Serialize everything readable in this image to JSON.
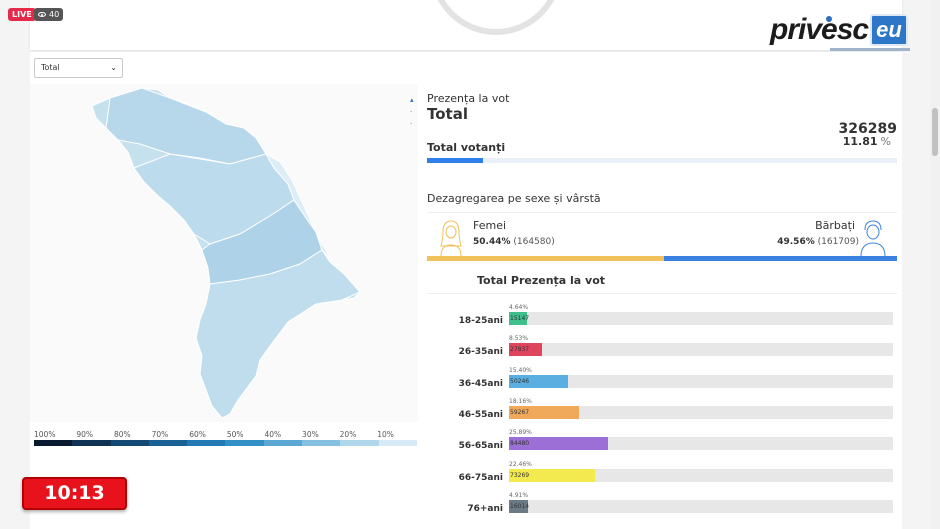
{
  "stream": {
    "live_label": "LIVE",
    "viewer_count": "40"
  },
  "logo": {
    "text": "privesc",
    "suffix": "eu"
  },
  "filter": {
    "selected": "Total"
  },
  "legend": {
    "labels": [
      "100%",
      "90%",
      "80%",
      "70%",
      "60%",
      "50%",
      "40%",
      "30%",
      "20%",
      "10%"
    ],
    "colors": [
      "#0a1a2e",
      "#0f3352",
      "#134a74",
      "#1a6296",
      "#2279b3",
      "#3390c6",
      "#5aa7d4",
      "#86c0e0",
      "#b1d7ec",
      "#d7ebf6"
    ]
  },
  "summary": {
    "heading": "Prezența la vot",
    "scope": "Total",
    "total_votes": "326289",
    "percent": "11.81",
    "percent_symbol": "%",
    "total_label": "Total votanți",
    "progress": 0.1181
  },
  "gender": {
    "title": "Dezagregarea pe sexe și vârstă",
    "female_label": "Femei",
    "female_pct": "50.44%",
    "female_count": "(164580)",
    "male_label": "Bărbați",
    "male_pct": "49.56%",
    "male_count": "(161709)",
    "female_share": 0.5044,
    "female_color": "#f0c05a",
    "male_color": "#3b82e0"
  },
  "age": {
    "title": "Total  Prezența la vot",
    "rows": [
      {
        "label": "18-25ani",
        "pct": "4.64%",
        "count": "15147",
        "share": 0.0464,
        "color": "#3fbf8c"
      },
      {
        "label": "26-35ani",
        "pct": "8.53%",
        "count": "27837",
        "share": 0.0853,
        "color": "#e0455e"
      },
      {
        "label": "36-45ani",
        "pct": "15.40%",
        "count": "50246",
        "share": 0.154,
        "color": "#5aaee0"
      },
      {
        "label": "46-55ani",
        "pct": "18.16%",
        "count": "59267",
        "share": 0.1816,
        "color": "#f0a95a"
      },
      {
        "label": "56-65ani",
        "pct": "25.89%",
        "count": "84480",
        "share": 0.2589,
        "color": "#9b6fd6"
      },
      {
        "label": "66-75ani",
        "pct": "22.46%",
        "count": "73269",
        "share": 0.2246,
        "color": "#f2ea4e"
      },
      {
        "label": "76+ani",
        "pct": "4.91%",
        "count": "16014",
        "share": 0.0491,
        "color": "#6c7a86"
      }
    ]
  },
  "timer": "10:13"
}
